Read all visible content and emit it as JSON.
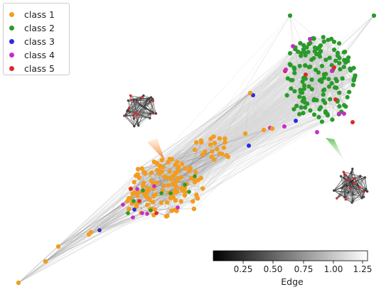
{
  "legend": {
    "items": [
      {
        "label": "class 1",
        "color": "#f39c1f"
      },
      {
        "label": "class 2",
        "color": "#2a9a2a"
      },
      {
        "label": "class 3",
        "color": "#2c2ce0"
      },
      {
        "label": "class 4",
        "color": "#c72bc7"
      },
      {
        "label": "class 5",
        "color": "#e02828"
      }
    ]
  },
  "colorbar": {
    "title": "Edge",
    "ticks": [
      "0.25",
      "0.50",
      "0.75",
      "1.00",
      "1.25"
    ],
    "colormap": "greys"
  },
  "colors": {
    "class1": "#f39c1f",
    "class2": "#2a9a2a",
    "class3": "#2c2ce0",
    "class4": "#c72bc7",
    "class5": "#e02828",
    "edge_light": "#d9d9d9",
    "edge_dark": "#222222"
  }
}
